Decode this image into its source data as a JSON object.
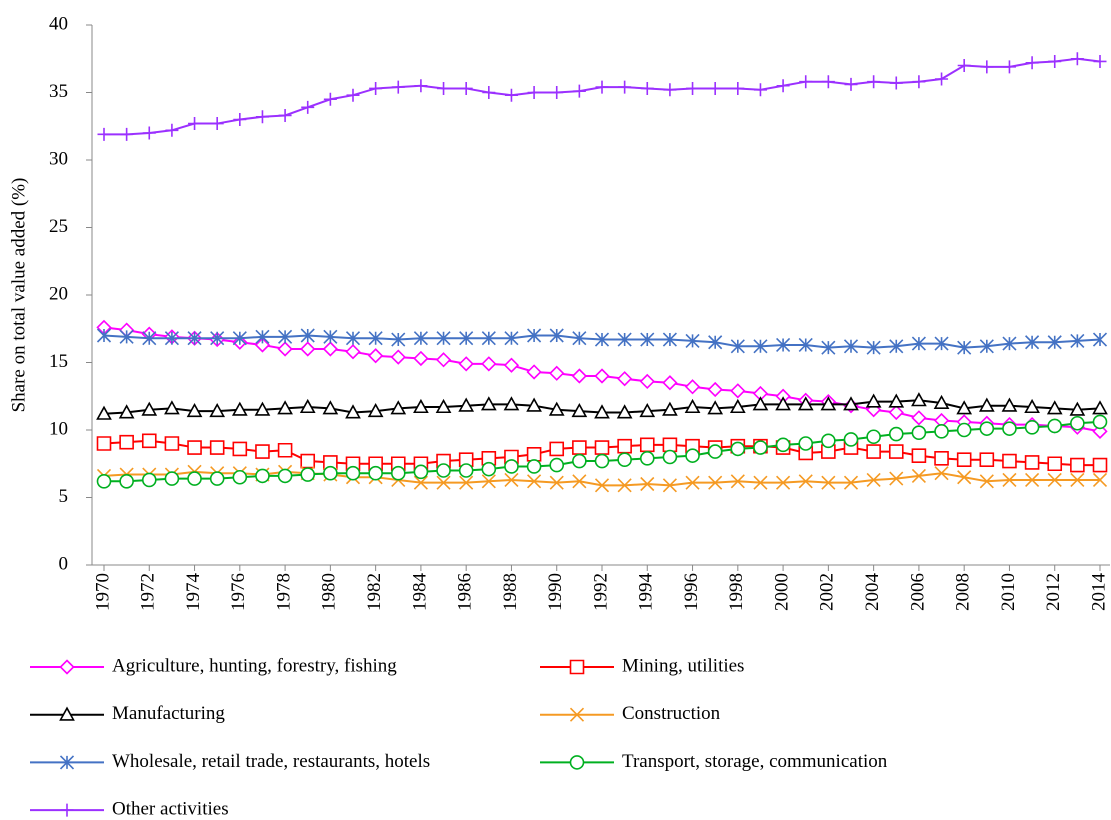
{
  "chart_data": {
    "type": "line",
    "y_label": "Share on total value added (%)",
    "x": [
      1970,
      1971,
      1972,
      1973,
      1974,
      1975,
      1976,
      1977,
      1978,
      1979,
      1980,
      1981,
      1982,
      1983,
      1984,
      1985,
      1986,
      1987,
      1988,
      1989,
      1990,
      1991,
      1992,
      1993,
      1994,
      1995,
      1996,
      1997,
      1998,
      1999,
      2000,
      2001,
      2002,
      2003,
      2004,
      2005,
      2006,
      2007,
      2008,
      2009,
      2010,
      2011,
      2012,
      2013,
      2014
    ],
    "xlim": [
      1970,
      2014
    ],
    "xticks": [
      1970,
      1972,
      1974,
      1976,
      1978,
      1980,
      1982,
      1984,
      1986,
      1988,
      1990,
      1992,
      1994,
      1996,
      1998,
      2000,
      2002,
      2004,
      2006,
      2008,
      2010,
      2012,
      2014
    ],
    "ylim": [
      0,
      40
    ],
    "yticks": [
      0,
      5,
      10,
      15,
      20,
      25,
      30,
      35,
      40
    ],
    "grid": false,
    "legend": "bottom",
    "series": [
      {
        "name": "Agriculture, hunting, forestry, fishing",
        "color": "#ff00ff",
        "marker": "diamond",
        "values": [
          17.6,
          17.4,
          17.1,
          16.9,
          16.8,
          16.7,
          16.5,
          16.3,
          16.0,
          16.0,
          16.0,
          15.8,
          15.5,
          15.4,
          15.3,
          15.2,
          14.9,
          14.9,
          14.8,
          14.3,
          14.2,
          14.0,
          14.0,
          13.8,
          13.6,
          13.5,
          13.2,
          13.0,
          12.9,
          12.7,
          12.5,
          12.2,
          12.1,
          11.8,
          11.5,
          11.3,
          10.9,
          10.7,
          10.6,
          10.5,
          10.4,
          10.4,
          10.3,
          10.2,
          9.9
        ]
      },
      {
        "name": "Mining, utilities",
        "color": "#ff0000",
        "marker": "square",
        "values": [
          9.0,
          9.1,
          9.2,
          9.0,
          8.7,
          8.7,
          8.6,
          8.4,
          8.5,
          7.7,
          7.6,
          7.5,
          7.5,
          7.5,
          7.5,
          7.7,
          7.8,
          7.9,
          8.0,
          8.2,
          8.6,
          8.7,
          8.7,
          8.8,
          8.9,
          8.9,
          8.8,
          8.7,
          8.8,
          8.8,
          8.7,
          8.3,
          8.4,
          8.7,
          8.4,
          8.4,
          8.1,
          7.9,
          7.8,
          7.8,
          7.7,
          7.6,
          7.5,
          7.4,
          7.4
        ]
      },
      {
        "name": "Manufacturing",
        "color": "#000000",
        "marker": "triangle",
        "values": [
          11.2,
          11.3,
          11.5,
          11.6,
          11.4,
          11.4,
          11.5,
          11.5,
          11.6,
          11.7,
          11.6,
          11.3,
          11.4,
          11.6,
          11.7,
          11.7,
          11.8,
          11.9,
          11.9,
          11.8,
          11.5,
          11.4,
          11.3,
          11.3,
          11.4,
          11.5,
          11.7,
          11.6,
          11.7,
          11.9,
          11.9,
          11.9,
          11.9,
          11.9,
          12.1,
          12.1,
          12.2,
          12.0,
          11.6,
          11.8,
          11.8,
          11.7,
          11.6,
          11.5,
          11.6
        ]
      },
      {
        "name": "Construction",
        "color": "#f59a23",
        "marker": "x",
        "values": [
          6.6,
          6.7,
          6.7,
          6.7,
          6.9,
          6.8,
          6.8,
          6.7,
          6.9,
          6.8,
          6.7,
          6.5,
          6.5,
          6.3,
          6.1,
          6.1,
          6.1,
          6.2,
          6.3,
          6.2,
          6.1,
          6.2,
          5.9,
          5.9,
          6.0,
          5.9,
          6.1,
          6.1,
          6.2,
          6.1,
          6.1,
          6.2,
          6.1,
          6.1,
          6.3,
          6.4,
          6.6,
          6.8,
          6.5,
          6.2,
          6.3,
          6.3,
          6.3,
          6.3,
          6.3
        ]
      },
      {
        "name": "Wholesale, retail trade, restaurants, hotels",
        "color": "#4472c4",
        "marker": "asterisk",
        "values": [
          17.0,
          16.9,
          16.8,
          16.8,
          16.8,
          16.8,
          16.8,
          16.9,
          16.9,
          17.0,
          16.9,
          16.8,
          16.8,
          16.7,
          16.8,
          16.8,
          16.8,
          16.8,
          16.8,
          17.0,
          17.0,
          16.8,
          16.7,
          16.7,
          16.7,
          16.7,
          16.6,
          16.5,
          16.2,
          16.2,
          16.3,
          16.3,
          16.1,
          16.2,
          16.1,
          16.2,
          16.4,
          16.4,
          16.1,
          16.2,
          16.4,
          16.5,
          16.5,
          16.6,
          16.7
        ]
      },
      {
        "name": "Transport, storage, communication",
        "color": "#00b020",
        "marker": "circle",
        "values": [
          6.2,
          6.2,
          6.3,
          6.4,
          6.4,
          6.4,
          6.5,
          6.6,
          6.6,
          6.7,
          6.8,
          6.8,
          6.8,
          6.8,
          6.9,
          7.0,
          7.0,
          7.1,
          7.3,
          7.3,
          7.4,
          7.7,
          7.7,
          7.8,
          7.9,
          8.0,
          8.1,
          8.4,
          8.6,
          8.7,
          8.9,
          9.0,
          9.2,
          9.3,
          9.5,
          9.7,
          9.8,
          9.9,
          10.0,
          10.1,
          10.1,
          10.2,
          10.3,
          10.5,
          10.6
        ]
      },
      {
        "name": "Other activities",
        "color": "#9b30ff",
        "marker": "plus",
        "values": [
          31.9,
          31.9,
          32.0,
          32.2,
          32.7,
          32.7,
          33.0,
          33.2,
          33.3,
          33.9,
          34.5,
          34.8,
          35.3,
          35.4,
          35.5,
          35.3,
          35.3,
          35.0,
          34.8,
          35.0,
          35.0,
          35.1,
          35.4,
          35.4,
          35.3,
          35.2,
          35.3,
          35.3,
          35.3,
          35.2,
          35.5,
          35.8,
          35.8,
          35.6,
          35.8,
          35.7,
          35.8,
          36.0,
          37.0,
          36.9,
          36.9,
          37.2,
          37.3,
          37.5,
          37.3
        ]
      }
    ]
  }
}
